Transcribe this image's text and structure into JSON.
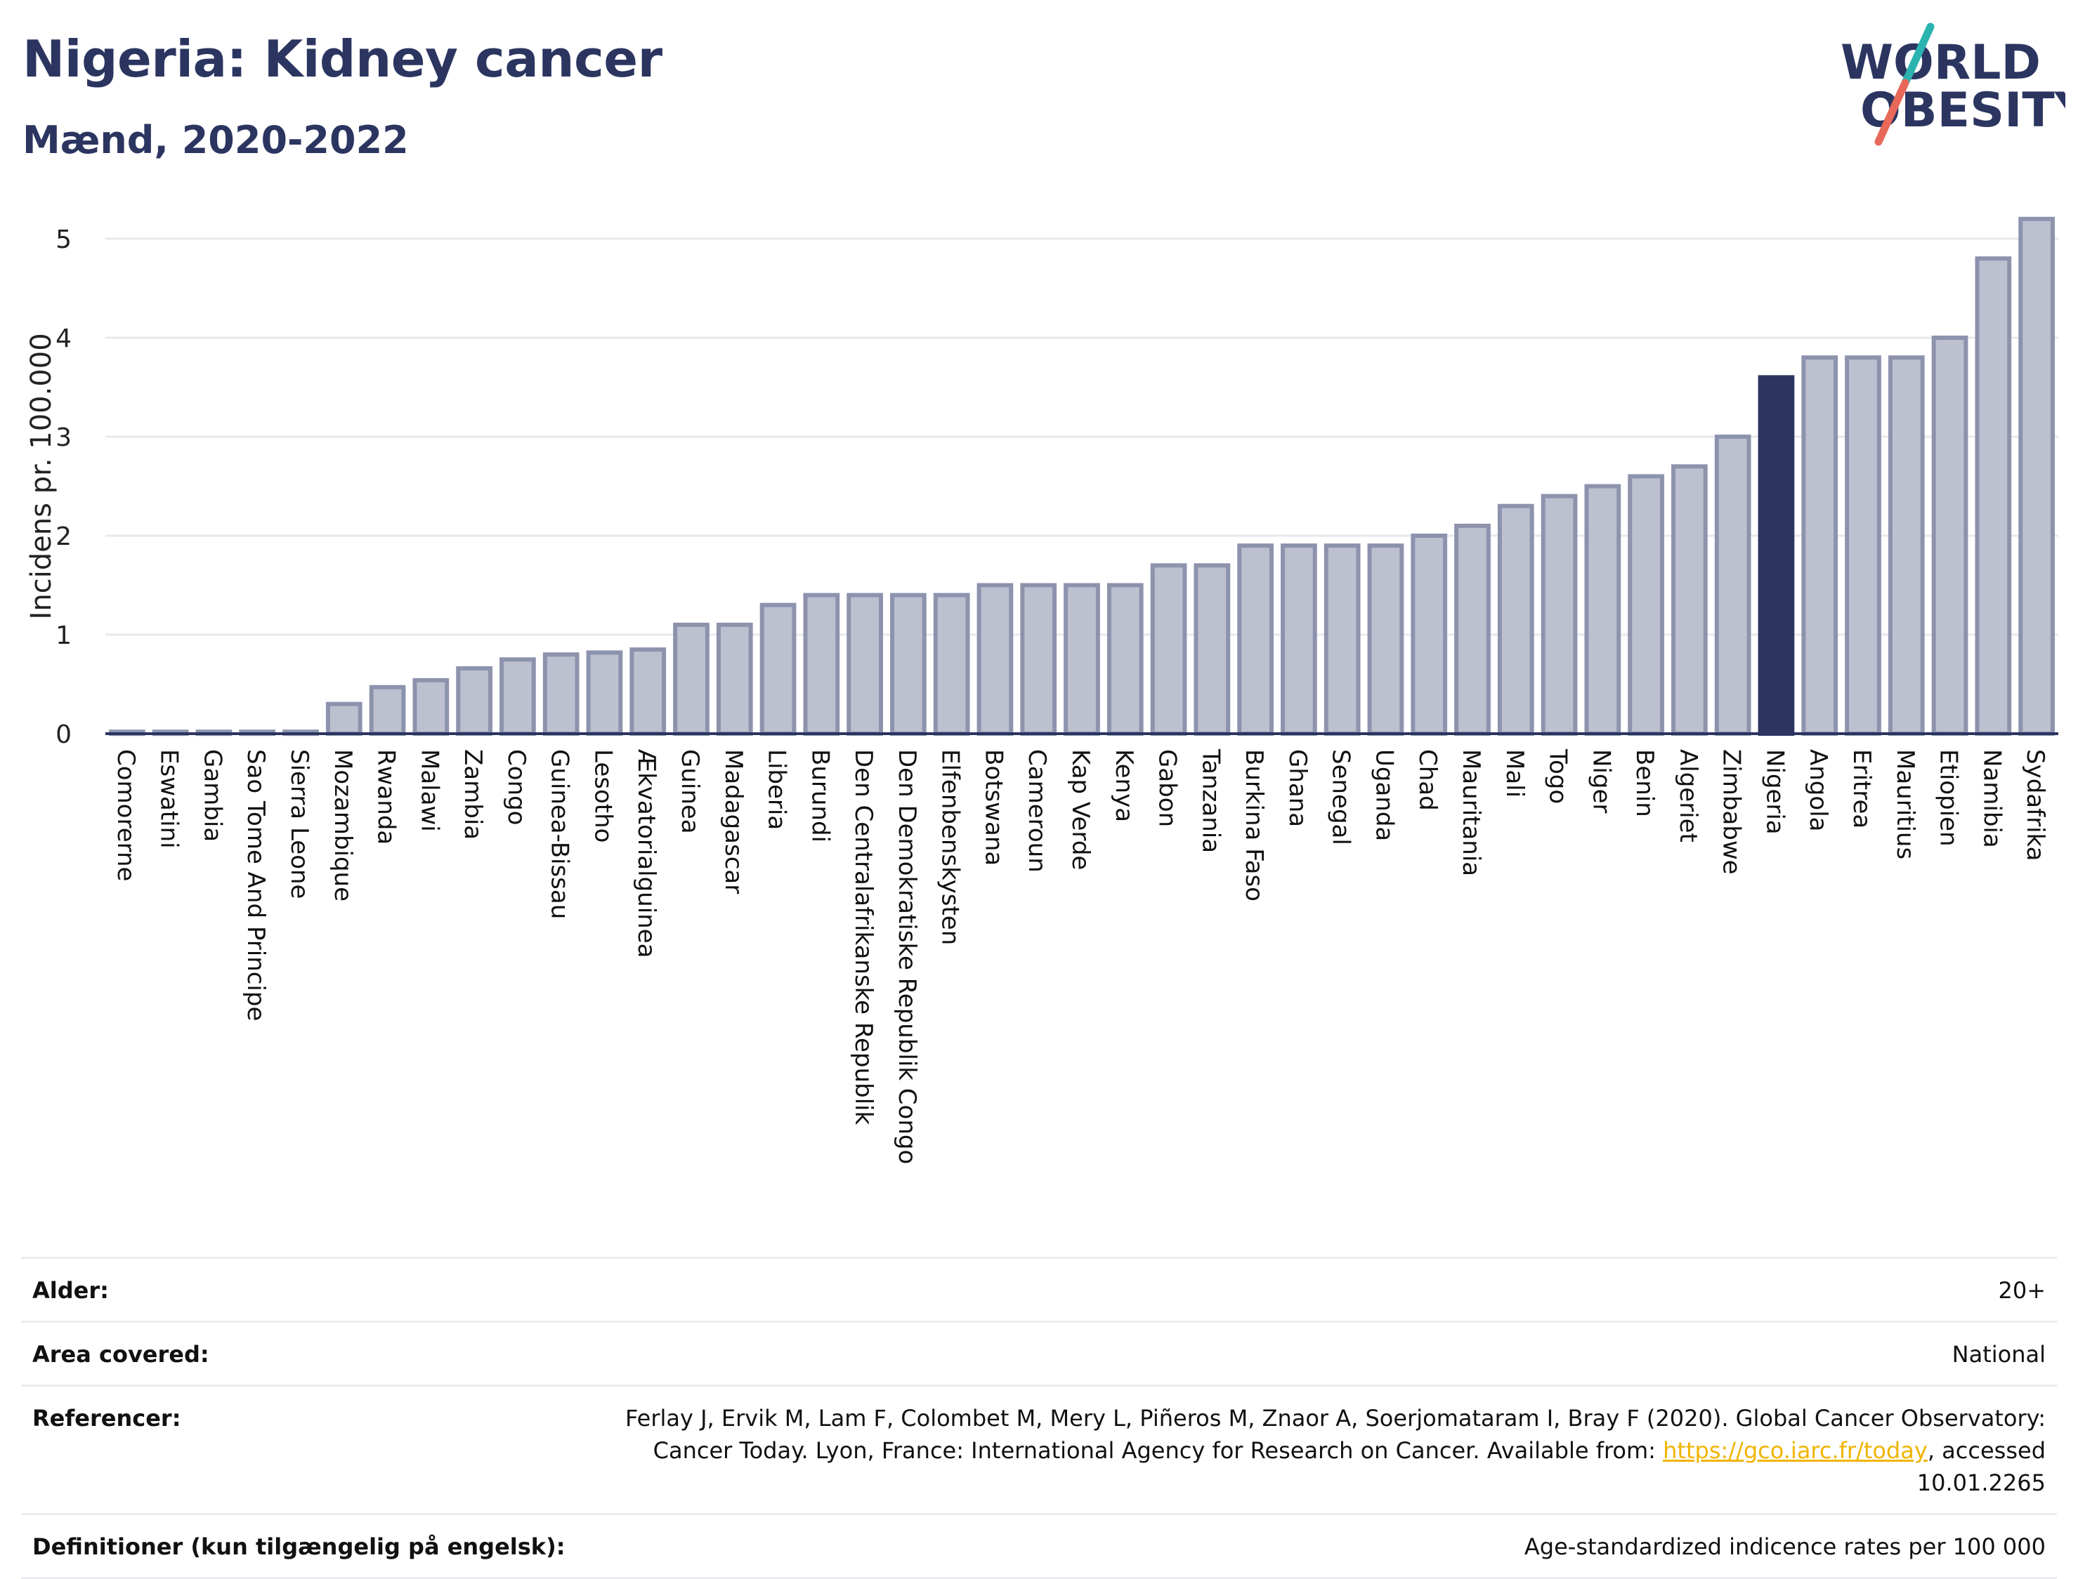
{
  "header": {
    "title": "Nigeria: Kidney cancer",
    "subtitle": "Mænd, 2020-2022"
  },
  "logo": {
    "line1": "WORLD",
    "line2": "OBESITY",
    "accent_teal": "#2bb3b0",
    "accent_red": "#e8685a"
  },
  "colors": {
    "bar": "#bcc0cf",
    "bar_edge": "#8d93ad",
    "highlight": "#2b3560",
    "grid": "#e8e8ee",
    "axis": "#2b3560"
  },
  "chart_data": {
    "type": "bar",
    "ylabel": "Incidens pr. 100.000",
    "ylim": [
      0,
      5.4
    ],
    "yticks": [
      0,
      1,
      2,
      3,
      4,
      5
    ],
    "grid": true,
    "highlight": "Nigeria",
    "categories": [
      "Comorerne",
      "Eswatini",
      "Gambia",
      "Sao Tome And Principe",
      "Sierra Leone",
      "Mozambique",
      "Rwanda",
      "Malawi",
      "Zambia",
      "Congo",
      "Guinea-Bissau",
      "Lesotho",
      "Ækvatorialguinea",
      "Guinea",
      "Madagascar",
      "Liberia",
      "Burundi",
      "Den Centralafrikanske Republik",
      "Den Demokratiske Republik Congo",
      "Elfenbenskysten",
      "Botswana",
      "Cameroun",
      "Kap Verde",
      "Kenya",
      "Gabon",
      "Tanzania",
      "Burkina Faso",
      "Ghana",
      "Senegal",
      "Uganda",
      "Chad",
      "Mauritania",
      "Mali",
      "Togo",
      "Niger",
      "Benin",
      "Algeriet",
      "Zimbabwe",
      "Nigeria",
      "Angola",
      "Eritrea",
      "Mauritius",
      "Etiopien",
      "Namibia",
      "Sydafrika"
    ],
    "values": [
      0.02,
      0.02,
      0.02,
      0.02,
      0.02,
      0.3,
      0.47,
      0.54,
      0.66,
      0.75,
      0.8,
      0.82,
      0.85,
      1.1,
      1.1,
      1.3,
      1.4,
      1.4,
      1.4,
      1.4,
      1.5,
      1.5,
      1.5,
      1.5,
      1.7,
      1.7,
      1.9,
      1.9,
      1.9,
      1.9,
      2.0,
      2.1,
      2.3,
      2.4,
      2.5,
      2.6,
      2.7,
      3.0,
      3.6,
      3.8,
      3.8,
      3.8,
      4.0,
      4.8,
      5.2
    ]
  },
  "info": [
    {
      "label": "Alder:",
      "value": "20+"
    },
    {
      "label": "Area covered:",
      "value": "National"
    },
    {
      "label": "Referencer:",
      "value": "Ferlay J, Ervik M, Lam F, Colombet M, Mery L, Piñeros M, Znaor A, Soerjomataram I, Bray F (2020). Global Cancer Observatory: Cancer Today. Lyon, France: International Agency for Research on Cancer. Available from: ",
      "link": "https://gco.iarc.fr/today",
      "value_after": ", accessed 10.01.2265"
    },
    {
      "label": "Definitioner (kun tilgængelig på engelsk):",
      "value": "Age-standardized indicence rates per 100 000"
    }
  ]
}
